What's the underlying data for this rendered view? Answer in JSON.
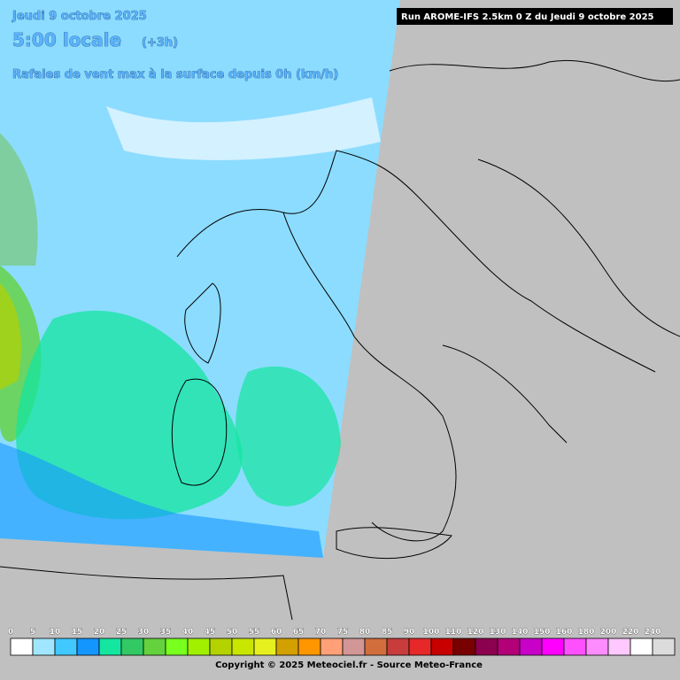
{
  "header": {
    "date": "Jeudi 9 octobre 2025",
    "time": "5:00 locale",
    "offset": "(+3h)",
    "subtitle": "Rafales de vent max à la surface depuis 0h (km/h)",
    "run": "Run AROME-IFS 2.5km 0 Z du Jeudi 9 octobre 2025"
  },
  "legend": {
    "labels": [
      0,
      5,
      10,
      15,
      20,
      25,
      30,
      35,
      40,
      45,
      50,
      55,
      60,
      65,
      70,
      75,
      80,
      85,
      90,
      100,
      110,
      120,
      130,
      140,
      150,
      160,
      180,
      200,
      220,
      240
    ],
    "colors": [
      "#ffffff",
      "#a0e6ff",
      "#40c8ff",
      "#1496ff",
      "#14e6a0",
      "#32c864",
      "#64d23c",
      "#78ff1e",
      "#a0f000",
      "#b4d200",
      "#c8e600",
      "#e6f01e",
      "#d2a000",
      "#ff9600",
      "#ffa078",
      "#d29696",
      "#d26e3c",
      "#c83c3c",
      "#e62828",
      "#c80000",
      "#780000",
      "#8c0050",
      "#b40078",
      "#c800c8",
      "#ff00ff",
      "#ff50ff",
      "#ff8cff",
      "#ffc8ff",
      "#ffffff",
      "#dcdcdc"
    ]
  },
  "footer": {
    "copyright": "Copyright © 2025 Meteociel.fr - Source Meteo-France"
  }
}
